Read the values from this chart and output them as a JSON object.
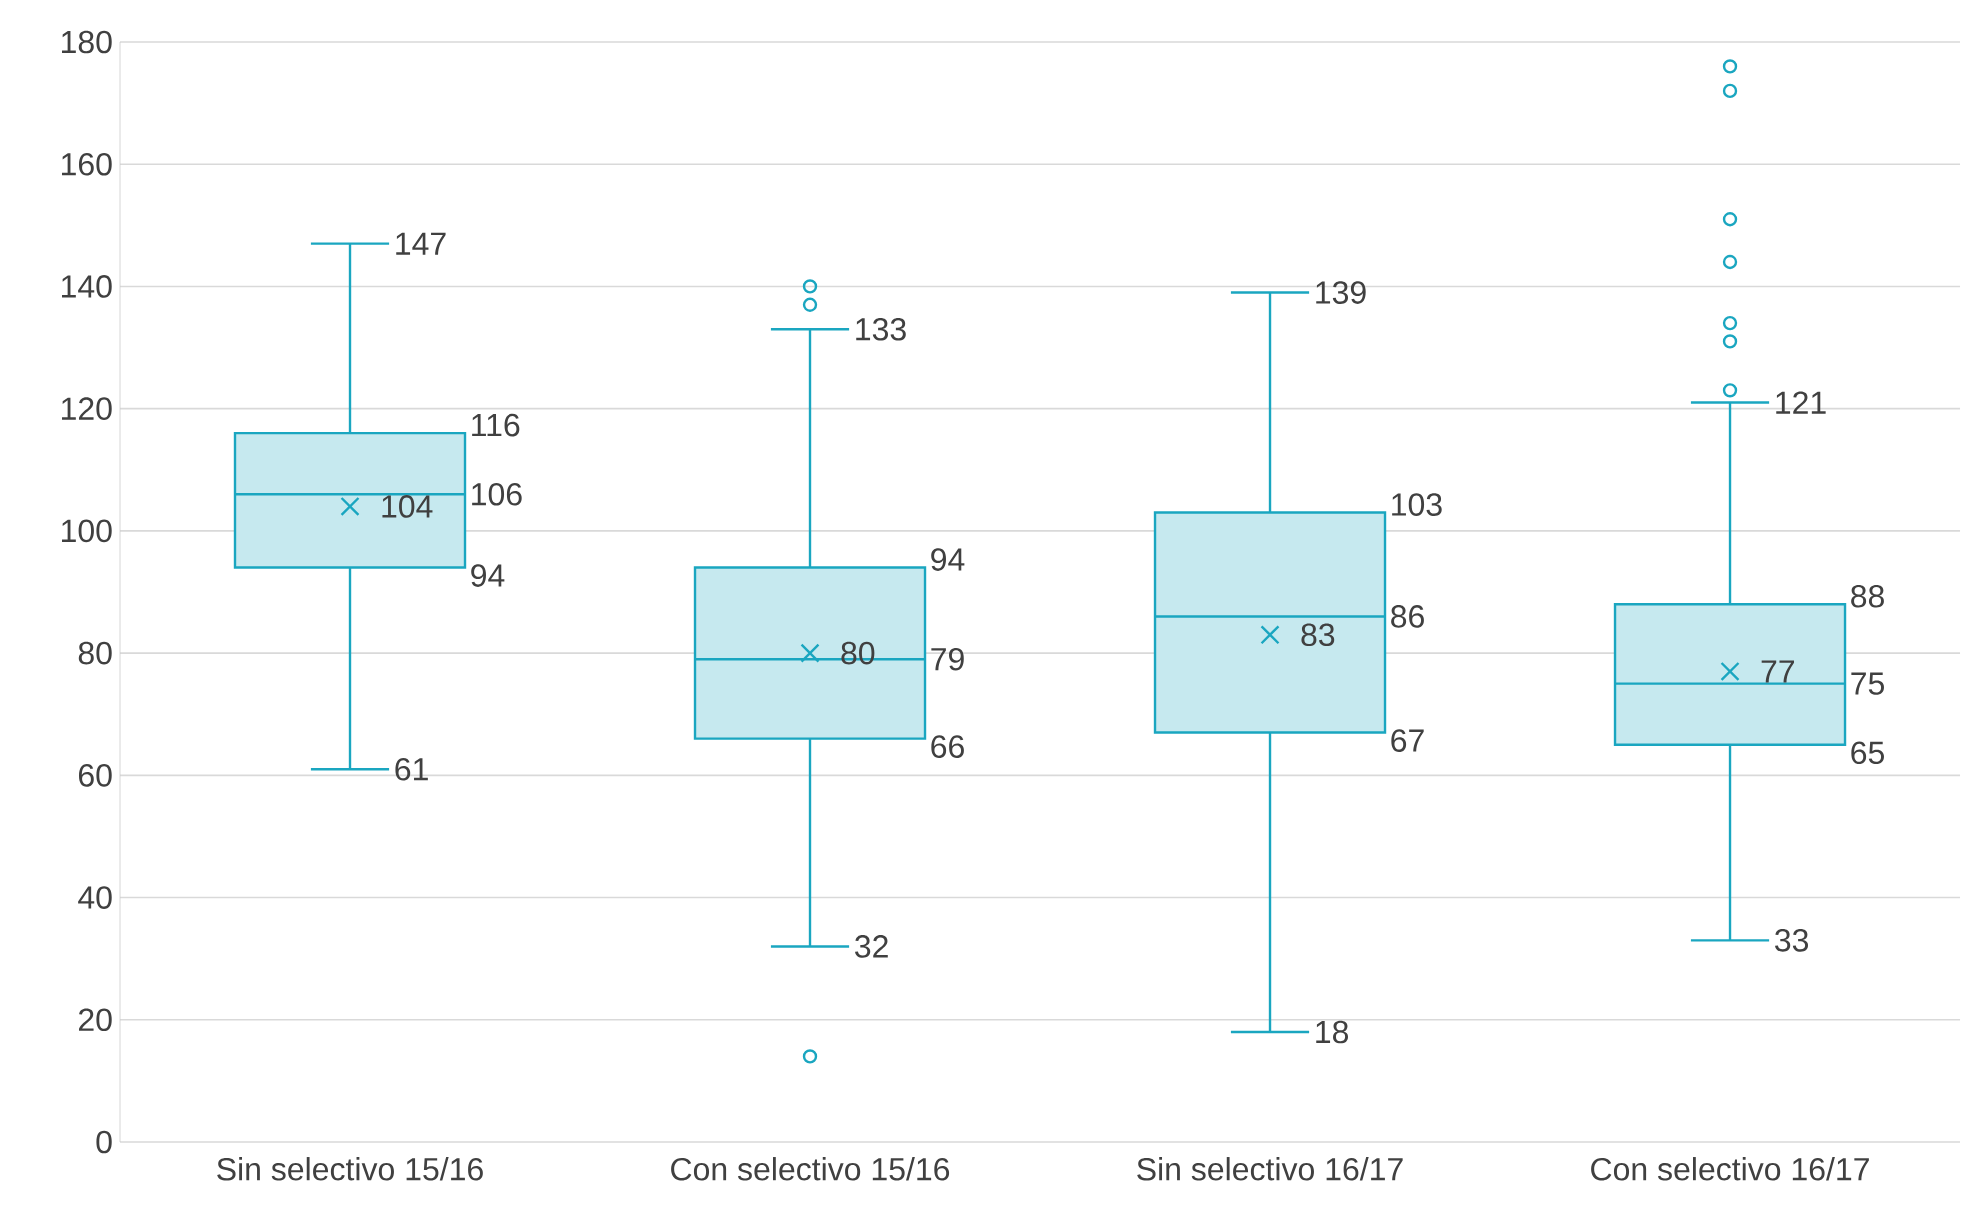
{
  "chart_data": {
    "type": "box",
    "categories": [
      "Sin selectivo 15/16",
      "Con selectivo 15/16",
      "Sin selectivo 16/17",
      "Con selectivo 16/17"
    ],
    "series": [
      {
        "color": "#1aa6c0",
        "boxes": [
          {
            "low": 61,
            "q1": 94,
            "median": 106,
            "q3": 116,
            "high": 147,
            "mean": 104
          },
          {
            "low": 32,
            "q1": 66,
            "median": 79,
            "q3": 94,
            "high": 133,
            "mean": 80,
            "outliers": [
              140,
              137,
              14
            ]
          },
          {
            "low": 18,
            "q1": 67,
            "median": 86,
            "q3": 103,
            "high": 139,
            "mean": 83
          },
          {
            "low": 33,
            "q1": 65,
            "median": 75,
            "q3": 88,
            "high": 121,
            "mean": 77,
            "outliers": [
              176,
              172,
              151,
              144,
              134,
              131,
              123
            ]
          }
        ]
      }
    ],
    "ylim": [
      0,
      180
    ],
    "yticks": [
      0,
      20,
      40,
      60,
      80,
      100,
      120,
      140,
      160,
      180
    ],
    "grid": "y",
    "annotations": [
      {
        "text": "147",
        "x": "Sin selectivo 15/16",
        "y": 147
      },
      "116",
      "106",
      "104",
      "94",
      {
        "text": "61",
        "x": "Sin selectivo 15/16",
        "y": 61
      },
      {
        "text": "133",
        "x": "Con selectivo 15/16",
        "y": 133
      },
      "94",
      "79",
      "80",
      "66",
      {
        "text": "32",
        "x": "Con selectivo 15/16",
        "y": 32
      },
      {
        "text": "139",
        "x": "Sin selectivo 16/17",
        "y": 139
      },
      "103",
      "86",
      "83",
      "67",
      {
        "text": "18",
        "x": "Sin selectivo 16/17",
        "y": 18
      },
      {
        "text": "121",
        "x": "Con selectivo 16/17",
        "y": 121
      },
      "88",
      "75",
      "77",
      "65",
      {
        "text": "33",
        "x": "Con selectivo 16/17",
        "y": 33
      }
    ]
  }
}
